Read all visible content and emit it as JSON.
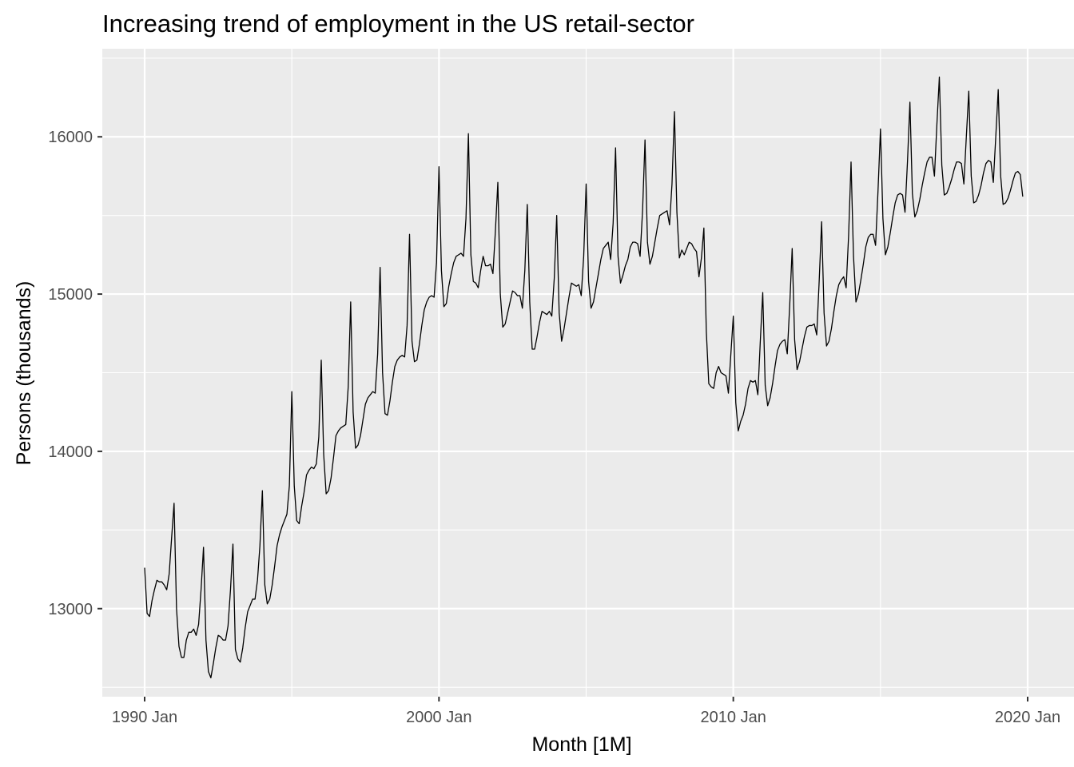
{
  "chart_data": {
    "type": "line",
    "title": "Increasing trend of employment in the US retail-sector",
    "xlabel": "Month [1M]",
    "ylabel": "Persons (thousands)",
    "x_start": "1990 Jan",
    "x_end": "2019 Sep",
    "x_ticks": [
      "1990 Jan",
      "2000 Jan",
      "2010 Jan",
      "2020 Jan"
    ],
    "y_ticks": [
      13000,
      14000,
      15000,
      16000
    ],
    "ylim": [
      12440,
      16560
    ],
    "grid": true,
    "legend": "none",
    "series": [
      {
        "color": "#000000",
        "values": [
          13260,
          12970,
          12950,
          13050,
          13120,
          13180,
          13170,
          13170,
          13150,
          13120,
          13220,
          13450,
          13670,
          13000,
          12760,
          12690,
          12690,
          12800,
          12850,
          12850,
          12870,
          12830,
          12900,
          13120,
          13390,
          12800,
          12600,
          12560,
          12650,
          12750,
          12830,
          12820,
          12800,
          12800,
          12890,
          13120,
          13410,
          12740,
          12680,
          12660,
          12750,
          12880,
          12980,
          13020,
          13060,
          13060,
          13180,
          13400,
          13750,
          13150,
          13030,
          13060,
          13150,
          13270,
          13400,
          13470,
          13520,
          13560,
          13600,
          13780,
          14380,
          13780,
          13560,
          13540,
          13650,
          13740,
          13850,
          13880,
          13900,
          13890,
          13920,
          14090,
          14580,
          13980,
          13730,
          13750,
          13830,
          13960,
          14100,
          14130,
          14150,
          14160,
          14170,
          14410,
          14950,
          14250,
          14020,
          14040,
          14100,
          14200,
          14300,
          14340,
          14360,
          14380,
          14370,
          14620,
          15170,
          14500,
          14240,
          14230,
          14320,
          14440,
          14540,
          14580,
          14600,
          14610,
          14600,
          14800,
          15380,
          14700,
          14570,
          14580,
          14680,
          14800,
          14900,
          14950,
          14980,
          14990,
          14980,
          15200,
          15810,
          15150,
          14920,
          14940,
          15050,
          15130,
          15200,
          15240,
          15250,
          15260,
          15240,
          15480,
          16020,
          15250,
          15080,
          15070,
          15040,
          15150,
          15240,
          15180,
          15180,
          15190,
          15130,
          15400,
          15710,
          15000,
          14790,
          14810,
          14880,
          14950,
          15020,
          15010,
          14990,
          14990,
          14910,
          15150,
          15570,
          14950,
          14650,
          14650,
          14730,
          14820,
          14890,
          14880,
          14870,
          14890,
          14860,
          15100,
          15500,
          14880,
          14700,
          14780,
          14880,
          14980,
          15070,
          15060,
          15050,
          15060,
          14990,
          15240,
          15700,
          15080,
          14910,
          14950,
          15040,
          15130,
          15220,
          15290,
          15310,
          15330,
          15220,
          15450,
          15930,
          15240,
          15070,
          15120,
          15180,
          15220,
          15300,
          15330,
          15330,
          15320,
          15240,
          15530,
          15980,
          15330,
          15190,
          15240,
          15330,
          15420,
          15500,
          15510,
          15520,
          15530,
          15440,
          15700,
          16160,
          15520,
          15230,
          15280,
          15250,
          15290,
          15330,
          15320,
          15290,
          15270,
          15110,
          15230,
          15420,
          14760,
          14430,
          14410,
          14400,
          14500,
          14540,
          14500,
          14490,
          14480,
          14370,
          14620,
          14860,
          14310,
          14130,
          14190,
          14230,
          14300,
          14400,
          14450,
          14440,
          14450,
          14360,
          14700,
          15010,
          14420,
          14290,
          14340,
          14430,
          14540,
          14640,
          14680,
          14700,
          14710,
          14620,
          14930,
          15290,
          14710,
          14520,
          14570,
          14650,
          14730,
          14790,
          14800,
          14800,
          14810,
          14740,
          15080,
          15460,
          14880,
          14670,
          14700,
          14780,
          14890,
          14990,
          15060,
          15090,
          15110,
          15040,
          15370,
          15840,
          15240,
          14950,
          15000,
          15090,
          15190,
          15300,
          15360,
          15380,
          15380,
          15310,
          15660,
          16050,
          15480,
          15250,
          15300,
          15390,
          15490,
          15580,
          15630,
          15640,
          15630,
          15520,
          15840,
          16220,
          15640,
          15490,
          15530,
          15600,
          15690,
          15770,
          15840,
          15870,
          15870,
          15750,
          16080,
          16380,
          15820,
          15630,
          15640,
          15680,
          15730,
          15790,
          15840,
          15840,
          15830,
          15700,
          16000,
          16290,
          15750,
          15580,
          15590,
          15630,
          15690,
          15770,
          15830,
          15850,
          15840,
          15710,
          16000,
          16300,
          15750,
          15570,
          15580,
          15610,
          15660,
          15720,
          15770,
          15780,
          15760,
          15620
        ]
      }
    ]
  }
}
